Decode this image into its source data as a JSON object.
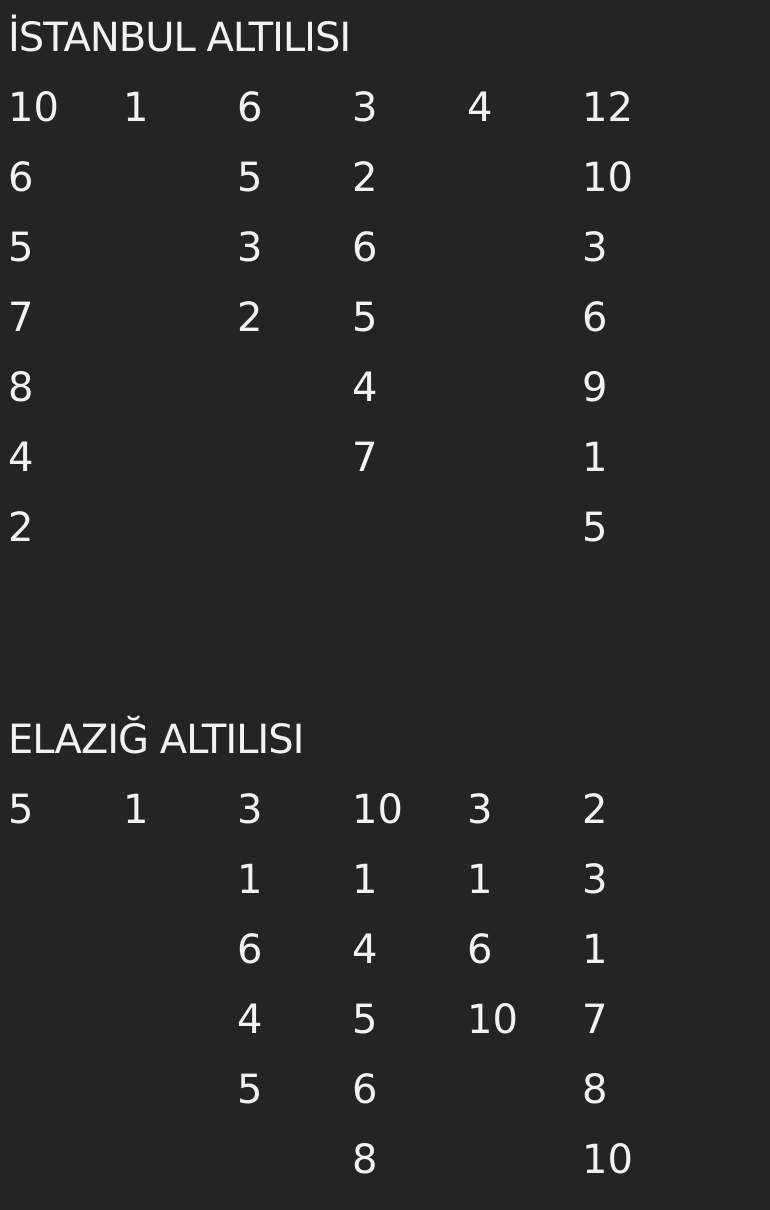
{
  "sections": [
    {
      "title": "İSTANBUL ALTILISI",
      "columns": [
        [
          "10",
          "6",
          "5",
          "7",
          "8",
          "4",
          "2"
        ],
        [
          "1"
        ],
        [
          "6",
          "5",
          "3",
          "2"
        ],
        [
          "3",
          "2",
          "6",
          "5",
          "4",
          "7"
        ],
        [
          "4"
        ],
        [
          "12",
          "10",
          "3",
          "6",
          "9",
          "1",
          "5"
        ]
      ]
    },
    {
      "title": "ELAZIĞ ALTILISI",
      "columns": [
        [
          "5"
        ],
        [
          "1"
        ],
        [
          "3",
          "1",
          "6",
          "4",
          "5"
        ],
        [
          "10",
          "1",
          "4",
          "5",
          "6",
          "8"
        ],
        [
          "3",
          "1",
          "6",
          "10"
        ],
        [
          "2",
          "3",
          "1",
          "7",
          "8",
          "10"
        ]
      ]
    }
  ]
}
